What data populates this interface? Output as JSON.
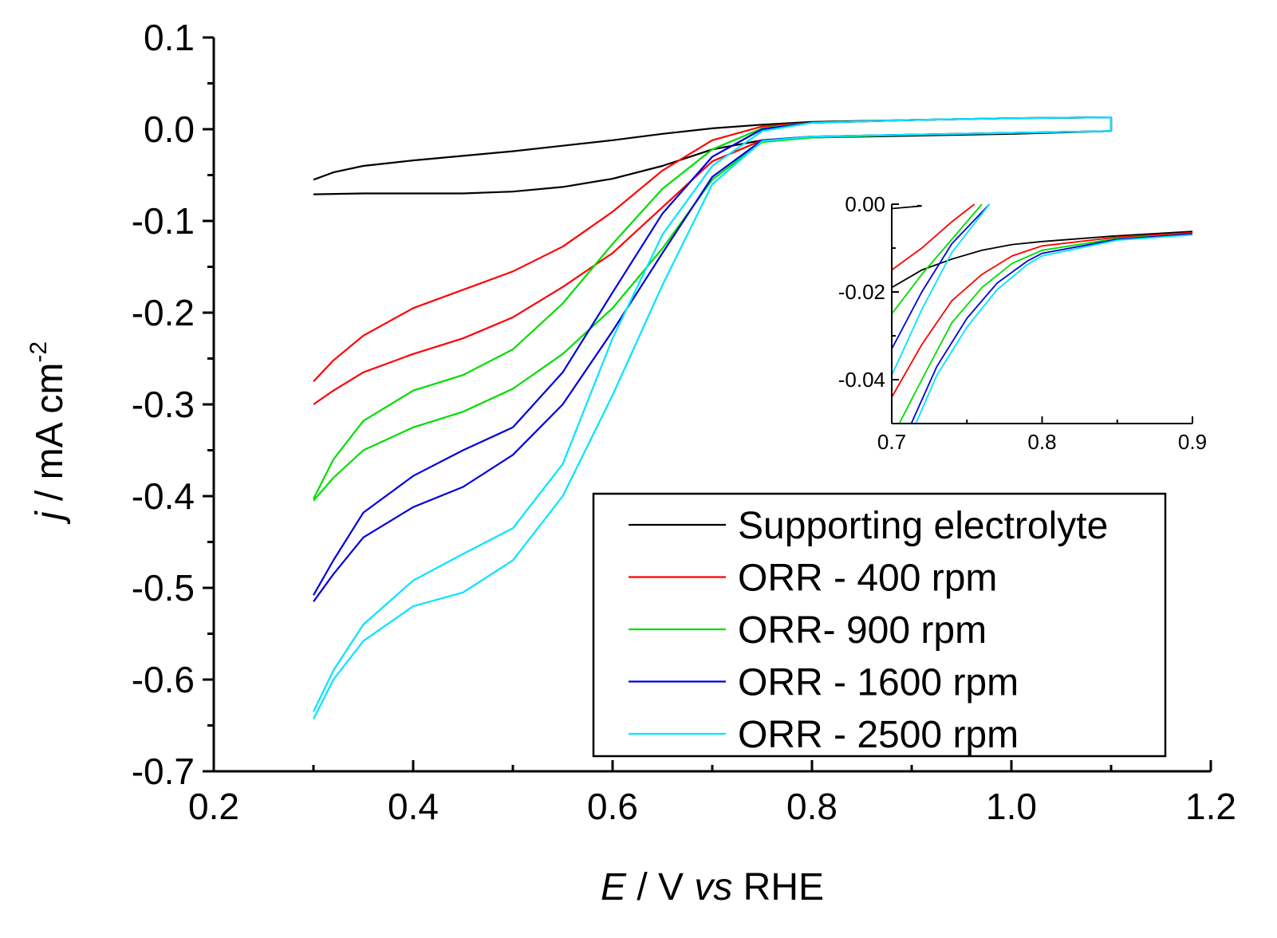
{
  "chart_data": [
    {
      "type": "line",
      "xlabel_parts": {
        "e": "E",
        "mid": " / V ",
        "vs": "vs",
        "rhe": " RHE"
      },
      "ylabel_parts": {
        "j": "j",
        "unit": " / mA cm",
        "sup": "-2"
      },
      "xlim": [
        0.2,
        1.2
      ],
      "ylim": [
        -0.7,
        0.1
      ],
      "x_ticks": [
        "0.2",
        "0.4",
        "0.6",
        "0.8",
        "1.0",
        "1.2"
      ],
      "y_ticks": [
        "0.1",
        "0.0",
        "-0.1",
        "-0.2",
        "-0.3",
        "-0.4",
        "-0.5",
        "-0.6",
        "-0.7"
      ],
      "legend_position": "bottom-right",
      "series": [
        {
          "name": "Supporting electrolyte",
          "color": "#000000",
          "forward": [
            [
              0.3,
              -0.071
            ],
            [
              0.35,
              -0.07
            ],
            [
              0.4,
              -0.07
            ],
            [
              0.45,
              -0.07
            ],
            [
              0.5,
              -0.068
            ],
            [
              0.55,
              -0.063
            ],
            [
              0.6,
              -0.054
            ],
            [
              0.65,
              -0.04
            ],
            [
              0.7,
              -0.022
            ],
            [
              0.75,
              -0.012
            ],
            [
              0.8,
              -0.009
            ],
            [
              0.9,
              -0.007
            ],
            [
              1.0,
              -0.005
            ],
            [
              1.1,
              -0.002
            ]
          ],
          "backward": [
            [
              1.1,
              0.013
            ],
            [
              1.0,
              0.012
            ],
            [
              0.9,
              0.01
            ],
            [
              0.8,
              0.008
            ],
            [
              0.75,
              0.005
            ],
            [
              0.7,
              0.001
            ],
            [
              0.65,
              -0.005
            ],
            [
              0.6,
              -0.012
            ],
            [
              0.55,
              -0.018
            ],
            [
              0.5,
              -0.024
            ],
            [
              0.45,
              -0.029
            ],
            [
              0.4,
              -0.034
            ],
            [
              0.35,
              -0.04
            ],
            [
              0.32,
              -0.047
            ],
            [
              0.3,
              -0.055
            ]
          ]
        },
        {
          "name": "ORR - 400 rpm",
          "color": "#ff0000",
          "forward": [
            [
              0.3,
              -0.3
            ],
            [
              0.32,
              -0.285
            ],
            [
              0.35,
              -0.265
            ],
            [
              0.4,
              -0.245
            ],
            [
              0.45,
              -0.228
            ],
            [
              0.5,
              -0.205
            ],
            [
              0.55,
              -0.172
            ],
            [
              0.6,
              -0.135
            ],
            [
              0.65,
              -0.085
            ],
            [
              0.7,
              -0.035
            ],
            [
              0.75,
              -0.012
            ],
            [
              0.8,
              -0.008
            ],
            [
              0.9,
              -0.006
            ],
            [
              1.0,
              -0.004
            ],
            [
              1.1,
              -0.002
            ]
          ],
          "backward": [
            [
              1.1,
              0.013
            ],
            [
              1.0,
              0.012
            ],
            [
              0.9,
              0.01
            ],
            [
              0.8,
              0.007
            ],
            [
              0.75,
              0.003
            ],
            [
              0.7,
              -0.012
            ],
            [
              0.65,
              -0.045
            ],
            [
              0.6,
              -0.09
            ],
            [
              0.55,
              -0.128
            ],
            [
              0.5,
              -0.155
            ],
            [
              0.45,
              -0.175
            ],
            [
              0.4,
              -0.195
            ],
            [
              0.35,
              -0.225
            ],
            [
              0.32,
              -0.252
            ],
            [
              0.3,
              -0.275
            ]
          ]
        },
        {
          "name": "ORR- 900 rpm",
          "color": "#00dd00",
          "forward": [
            [
              0.3,
              -0.405
            ],
            [
              0.32,
              -0.38
            ],
            [
              0.35,
              -0.35
            ],
            [
              0.4,
              -0.325
            ],
            [
              0.45,
              -0.308
            ],
            [
              0.5,
              -0.283
            ],
            [
              0.55,
              -0.245
            ],
            [
              0.6,
              -0.195
            ],
            [
              0.65,
              -0.13
            ],
            [
              0.7,
              -0.055
            ],
            [
              0.75,
              -0.014
            ],
            [
              0.8,
              -0.009
            ],
            [
              0.9,
              -0.006
            ],
            [
              1.0,
              -0.004
            ],
            [
              1.1,
              -0.002
            ]
          ],
          "backward": [
            [
              1.1,
              0.013
            ],
            [
              1.0,
              0.012
            ],
            [
              0.9,
              0.01
            ],
            [
              0.8,
              0.007
            ],
            [
              0.75,
              0.001
            ],
            [
              0.7,
              -0.022
            ],
            [
              0.65,
              -0.065
            ],
            [
              0.6,
              -0.125
            ],
            [
              0.55,
              -0.19
            ],
            [
              0.5,
              -0.24
            ],
            [
              0.45,
              -0.268
            ],
            [
              0.4,
              -0.285
            ],
            [
              0.35,
              -0.318
            ],
            [
              0.32,
              -0.36
            ],
            [
              0.3,
              -0.403
            ]
          ]
        },
        {
          "name": "ORR - 1600 rpm",
          "color": "#0000dd",
          "forward": [
            [
              0.3,
              -0.515
            ],
            [
              0.32,
              -0.485
            ],
            [
              0.35,
              -0.445
            ],
            [
              0.4,
              -0.412
            ],
            [
              0.45,
              -0.39
            ],
            [
              0.5,
              -0.355
            ],
            [
              0.55,
              -0.3
            ],
            [
              0.6,
              -0.22
            ],
            [
              0.65,
              -0.135
            ],
            [
              0.7,
              -0.052
            ],
            [
              0.75,
              -0.012
            ],
            [
              0.8,
              -0.008
            ],
            [
              0.9,
              -0.006
            ],
            [
              1.0,
              -0.004
            ],
            [
              1.1,
              -0.002
            ]
          ],
          "backward": [
            [
              1.1,
              0.013
            ],
            [
              1.0,
              0.012
            ],
            [
              0.9,
              0.01
            ],
            [
              0.8,
              0.007
            ],
            [
              0.75,
              0.0
            ],
            [
              0.7,
              -0.03
            ],
            [
              0.65,
              -0.092
            ],
            [
              0.6,
              -0.178
            ],
            [
              0.55,
              -0.265
            ],
            [
              0.5,
              -0.325
            ],
            [
              0.45,
              -0.35
            ],
            [
              0.4,
              -0.378
            ],
            [
              0.35,
              -0.418
            ],
            [
              0.32,
              -0.47
            ],
            [
              0.3,
              -0.508
            ]
          ]
        },
        {
          "name": "ORR - 2500 rpm",
          "color": "#00e5ff",
          "forward": [
            [
              0.3,
              -0.643
            ],
            [
              0.32,
              -0.6
            ],
            [
              0.35,
              -0.558
            ],
            [
              0.4,
              -0.52
            ],
            [
              0.45,
              -0.505
            ],
            [
              0.5,
              -0.47
            ],
            [
              0.55,
              -0.4
            ],
            [
              0.6,
              -0.29
            ],
            [
              0.65,
              -0.17
            ],
            [
              0.7,
              -0.06
            ],
            [
              0.75,
              -0.013
            ],
            [
              0.8,
              -0.008
            ],
            [
              0.9,
              -0.006
            ],
            [
              1.0,
              -0.004
            ],
            [
              1.1,
              -0.002
            ]
          ],
          "backward": [
            [
              1.1,
              0.013
            ],
            [
              1.0,
              0.012
            ],
            [
              0.9,
              0.01
            ],
            [
              0.8,
              0.007
            ],
            [
              0.75,
              -0.002
            ],
            [
              0.7,
              -0.04
            ],
            [
              0.65,
              -0.115
            ],
            [
              0.6,
              -0.228
            ],
            [
              0.55,
              -0.365
            ],
            [
              0.5,
              -0.435
            ],
            [
              0.45,
              -0.463
            ],
            [
              0.4,
              -0.492
            ],
            [
              0.35,
              -0.54
            ],
            [
              0.32,
              -0.59
            ],
            [
              0.3,
              -0.635
            ]
          ]
        }
      ]
    },
    {
      "type": "line",
      "role": "inset",
      "xlim": [
        0.7,
        0.9
      ],
      "ylim": [
        -0.05,
        0.0
      ],
      "x_ticks": [
        "0.7",
        "0.8",
        "0.9"
      ],
      "y_ticks": [
        "0.00",
        "-0.02",
        "-0.04"
      ],
      "series": [
        {
          "name": "Supporting electrolyte",
          "color": "#000000",
          "segments": [
            [
              [
                0.7,
                -0.019
              ],
              [
                0.72,
                -0.015
              ],
              [
                0.74,
                -0.0125
              ],
              [
                0.76,
                -0.0105
              ],
              [
                0.78,
                -0.0092
              ],
              [
                0.8,
                -0.0085
              ],
              [
                0.85,
                -0.0072
              ],
              [
                0.9,
                -0.0062
              ]
            ],
            [
              [
                0.7,
                -0.001
              ],
              [
                0.72,
                -0.0004
              ],
              [
                0.717,
                -0.0003
              ]
            ]
          ]
        },
        {
          "name": "ORR - 400 rpm",
          "color": "#ff0000",
          "segments": [
            [
              [
                0.7,
                -0.044
              ],
              [
                0.72,
                -0.032
              ],
              [
                0.74,
                -0.022
              ],
              [
                0.76,
                -0.016
              ],
              [
                0.78,
                -0.0118
              ],
              [
                0.8,
                -0.0095
              ],
              [
                0.85,
                -0.0075
              ],
              [
                0.9,
                -0.0065
              ]
            ],
            [
              [
                0.7,
                -0.015
              ],
              [
                0.72,
                -0.01
              ],
              [
                0.74,
                -0.004
              ],
              [
                0.755,
                0.0
              ]
            ]
          ]
        },
        {
          "name": "ORR- 900 rpm",
          "color": "#00dd00",
          "segments": [
            [
              [
                0.705,
                -0.05
              ],
              [
                0.72,
                -0.04
              ],
              [
                0.74,
                -0.027
              ],
              [
                0.76,
                -0.019
              ],
              [
                0.78,
                -0.0135
              ],
              [
                0.8,
                -0.0105
              ],
              [
                0.85,
                -0.0078
              ],
              [
                0.9,
                -0.0068
              ]
            ],
            [
              [
                0.7,
                -0.025
              ],
              [
                0.72,
                -0.016
              ],
              [
                0.74,
                -0.008
              ],
              [
                0.76,
                0.0
              ]
            ]
          ]
        },
        {
          "name": "ORR - 1600 rpm",
          "color": "#0000dd",
          "segments": [
            [
              [
                0.713,
                -0.05
              ],
              [
                0.73,
                -0.037
              ],
              [
                0.75,
                -0.026
              ],
              [
                0.77,
                -0.018
              ],
              [
                0.79,
                -0.013
              ],
              [
                0.8,
                -0.0112
              ],
              [
                0.85,
                -0.008
              ],
              [
                0.9,
                -0.0068
              ]
            ],
            [
              [
                0.7,
                -0.033
              ],
              [
                0.72,
                -0.02
              ],
              [
                0.74,
                -0.009
              ],
              [
                0.765,
                0.0
              ]
            ]
          ]
        },
        {
          "name": "ORR - 2500 rpm",
          "color": "#00e5ff",
          "segments": [
            [
              [
                0.716,
                -0.05
              ],
              [
                0.73,
                -0.039
              ],
              [
                0.75,
                -0.028
              ],
              [
                0.77,
                -0.0195
              ],
              [
                0.79,
                -0.0138
              ],
              [
                0.8,
                -0.0118
              ],
              [
                0.85,
                -0.0082
              ],
              [
                0.9,
                -0.007
              ]
            ],
            [
              [
                0.7,
                -0.039
              ],
              [
                0.72,
                -0.024
              ],
              [
                0.74,
                -0.011
              ],
              [
                0.765,
                0.0
              ]
            ]
          ]
        }
      ]
    }
  ]
}
